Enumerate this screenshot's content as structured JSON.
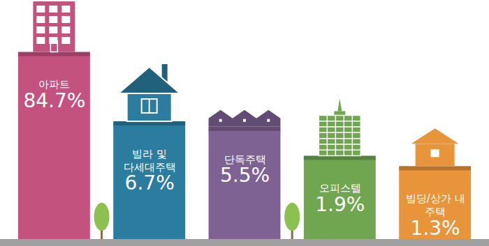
{
  "chart_data": {
    "type": "bar",
    "categories": [
      "아파트",
      "빌라 및\n다세대주택",
      "단독주택",
      "오피스텔",
      "빌딩/상가 내\n주택"
    ],
    "values": [
      84.7,
      6.7,
      5.5,
      1.9,
      1.3
    ],
    "value_labels": [
      "84.7%",
      "6.7%",
      "5.5%",
      "1.9%",
      "1.3%"
    ],
    "colors": [
      "#c4527f",
      "#2b7c9e",
      "#7e6294",
      "#6fa64f",
      "#e8943a"
    ],
    "data_labels": true,
    "tick_labels": false,
    "log": "y",
    "ylim": [
      0.1,
      100
    ]
  }
}
